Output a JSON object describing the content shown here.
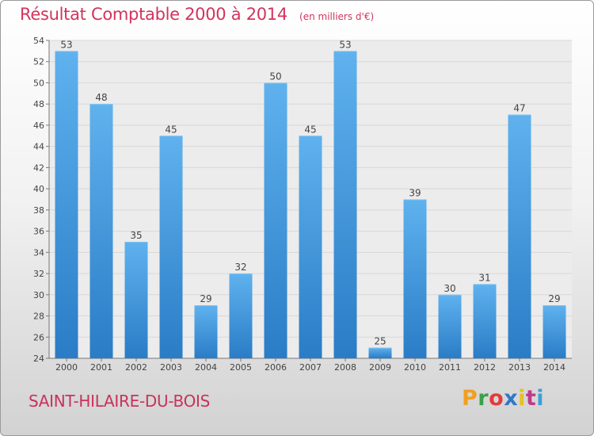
{
  "chart_data": {
    "type": "bar",
    "title": "Résultat Comptable 2000 à 2014",
    "subtitle": "(en milliers d'€)",
    "xlabel": "",
    "ylabel": "",
    "categories": [
      "2000",
      "2001",
      "2002",
      "2003",
      "2004",
      "2005",
      "2006",
      "2007",
      "2008",
      "2009",
      "2010",
      "2011",
      "2012",
      "2013",
      "2014"
    ],
    "values": [
      53,
      48,
      35,
      45,
      29,
      32,
      50,
      45,
      53,
      25,
      39,
      30,
      31,
      47,
      29
    ],
    "ylim": [
      24,
      54
    ],
    "yticks": [
      24,
      26,
      28,
      30,
      32,
      34,
      36,
      38,
      40,
      42,
      44,
      46,
      48,
      50,
      52,
      54
    ],
    "grid": true,
    "bar_color": "#3a8fd6"
  },
  "footer": {
    "place": "SAINT-HILAIRE-DU-BOIS",
    "logo": "Proxiti",
    "logo_colors": [
      "#f0a020",
      "#3aa04a",
      "#e03c3c",
      "#2f78c8",
      "#e8c020",
      "#c03a8a",
      "#3aa0d8"
    ]
  }
}
